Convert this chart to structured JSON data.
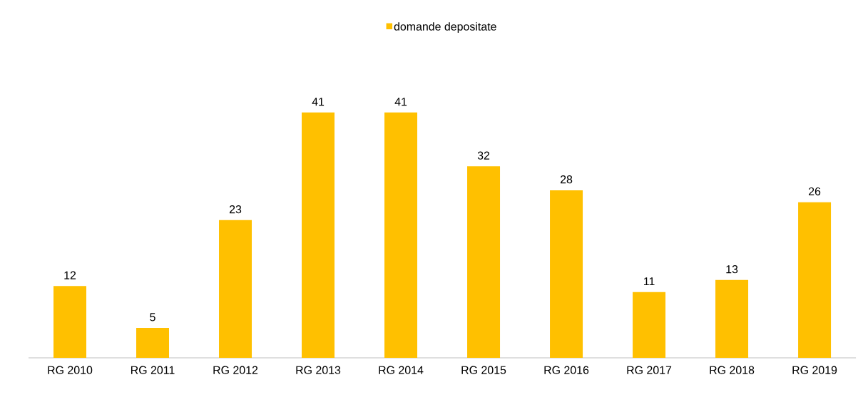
{
  "chart_data": {
    "type": "bar",
    "categories": [
      "RG 2010",
      "RG 2011",
      "RG 2012",
      "RG 2013",
      "RG 2014",
      "RG 2015",
      "RG 2016",
      "RG 2017",
      "RG 2018",
      "RG 2019"
    ],
    "series": [
      {
        "name": "domande depositate",
        "color": "#ffc000",
        "values": [
          12,
          5,
          23,
          41,
          41,
          32,
          28,
          11,
          13,
          26
        ]
      }
    ],
    "data_labels": true,
    "legend": "top"
  }
}
